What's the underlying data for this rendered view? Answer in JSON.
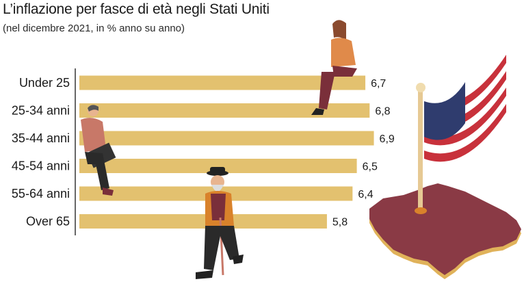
{
  "title": "L’inflazione per fasce di età negli Stati Uniti",
  "subtitle": "(nel dicembre 2021, in % anno su anno)",
  "colors": {
    "bar": "#e3c16f",
    "axis": "#333333",
    "flag_red": "#c8313b",
    "flag_blue": "#2f3c6e",
    "map_fill": "#8a3a45",
    "map_side": "#e0b25a"
  },
  "chart_data": {
    "type": "bar",
    "orientation": "horizontal",
    "categories": [
      "Under 25",
      "25-34 anni",
      "35-44 anni",
      "45-54 anni",
      "55-64 anni",
      "Over 65"
    ],
    "values": [
      6.7,
      6.8,
      6.9,
      6.5,
      6.4,
      5.8
    ],
    "value_labels": [
      "6,7",
      "6,8",
      "6,9",
      "6,5",
      "6,4",
      "5,8"
    ],
    "title": "L’inflazione per fasce di età negli Stati Uniti",
    "subtitle": "(nel dicembre 2021, in % anno su anno)",
    "xlabel": "",
    "ylabel": "",
    "grid": false,
    "legend": "none"
  },
  "illustration": {
    "icons": [
      "woman-sitting-icon",
      "man-with-tablet-icon",
      "old-man-with-cane-icon",
      "us-flag-icon",
      "us-map-icon"
    ]
  }
}
